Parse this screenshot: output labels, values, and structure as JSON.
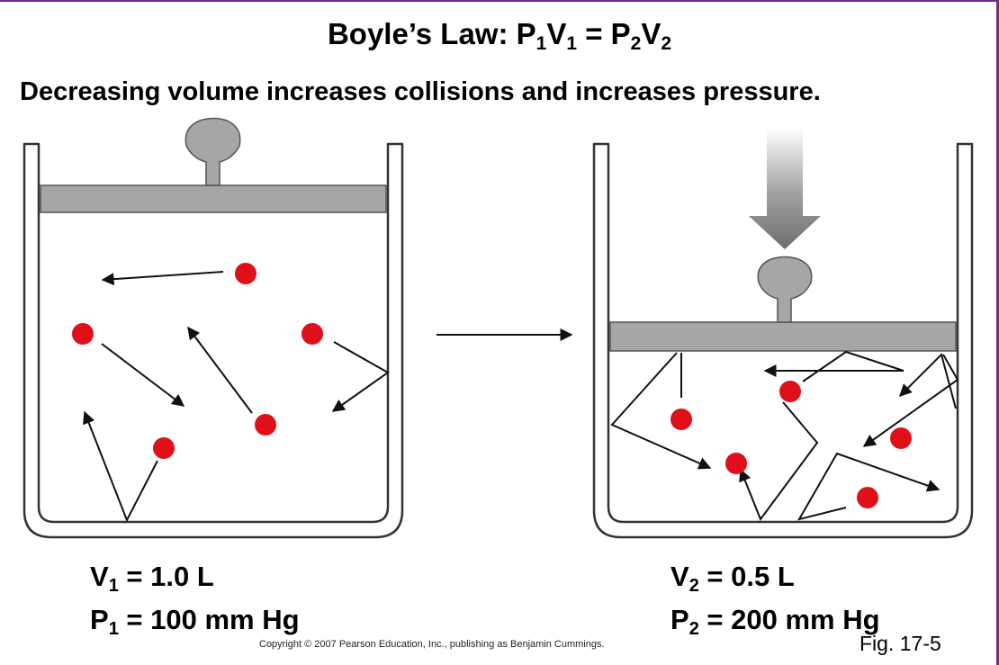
{
  "title": {
    "prefix": "Boyle’s Law: P",
    "s1": "1",
    "v1": "V",
    "s2": "1",
    "eq": " = P",
    "s3": "2",
    "v2": "V",
    "s4": "2"
  },
  "subtitle": "Decreasing volume increases collisions and increases pressure.",
  "left_state": {
    "volume_prefix": "V",
    "volume_sub": "1",
    "volume_value": " = 1.0 L",
    "pressure_prefix": "P",
    "pressure_sub": "1",
    "pressure_value": " = 100 mm Hg"
  },
  "right_state": {
    "volume_prefix": "V",
    "volume_sub": "2",
    "volume_value": " = 0.5 L",
    "pressure_prefix": "P",
    "pressure_sub": "2",
    "pressure_value": " = 200 mm Hg"
  },
  "copyright": "Copyright © 2007 Pearson Education, Inc., publishing as Benjamin Cummings.",
  "figure_label": "Fig. 17-5",
  "colors": {
    "particle": "#e0101a",
    "piston": "#a6a6a6",
    "container": "#333333",
    "border": "#6a2c91"
  }
}
